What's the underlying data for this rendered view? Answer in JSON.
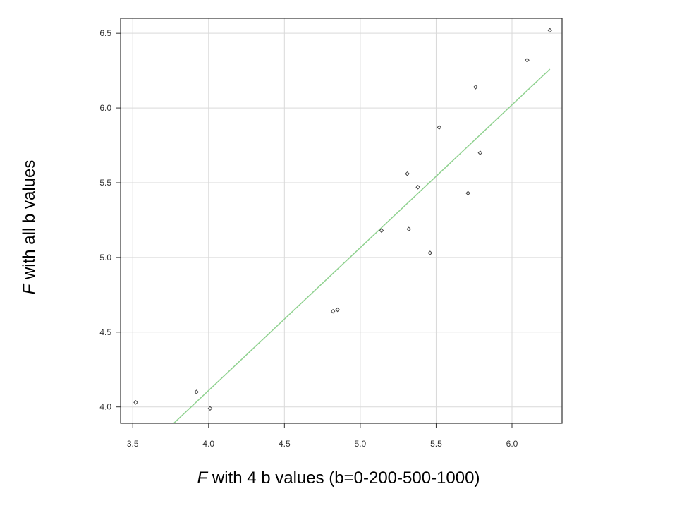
{
  "chart_data": {
    "type": "scatter",
    "xlabel_var": "F",
    "xlabel_rest": " with 4 b values (b=0-200-500-1000)",
    "ylabel_var": "F",
    "ylabel_rest": " with all b values",
    "xlim": [
      3.42,
      6.33
    ],
    "ylim": [
      3.89,
      6.6
    ],
    "xticks": [
      "3.5",
      "4.0",
      "4.5",
      "5.0",
      "5.5",
      "6.0"
    ],
    "yticks": [
      "4.0",
      "4.5",
      "5.0",
      "5.5",
      "6.0",
      "6.5"
    ],
    "grid": true,
    "points": [
      {
        "x": 3.52,
        "y": 4.03
      },
      {
        "x": 3.92,
        "y": 4.1
      },
      {
        "x": 4.01,
        "y": 3.99
      },
      {
        "x": 4.82,
        "y": 4.64
      },
      {
        "x": 4.85,
        "y": 4.65
      },
      {
        "x": 5.14,
        "y": 5.18
      },
      {
        "x": 5.31,
        "y": 5.56
      },
      {
        "x": 5.32,
        "y": 5.19
      },
      {
        "x": 5.38,
        "y": 5.47
      },
      {
        "x": 5.46,
        "y": 5.03
      },
      {
        "x": 5.52,
        "y": 5.87
      },
      {
        "x": 5.71,
        "y": 5.43
      },
      {
        "x": 5.76,
        "y": 6.14
      },
      {
        "x": 5.79,
        "y": 5.7
      },
      {
        "x": 6.1,
        "y": 6.32
      },
      {
        "x": 6.25,
        "y": 6.52
      }
    ],
    "fit_line": {
      "x": [
        3.77,
        6.25
      ],
      "y": [
        3.89,
        6.26
      ]
    },
    "colors": {
      "points": "#444444",
      "fit_line": "#8fd18f",
      "grid": "#d9d9d9",
      "axes": "#333333"
    }
  }
}
